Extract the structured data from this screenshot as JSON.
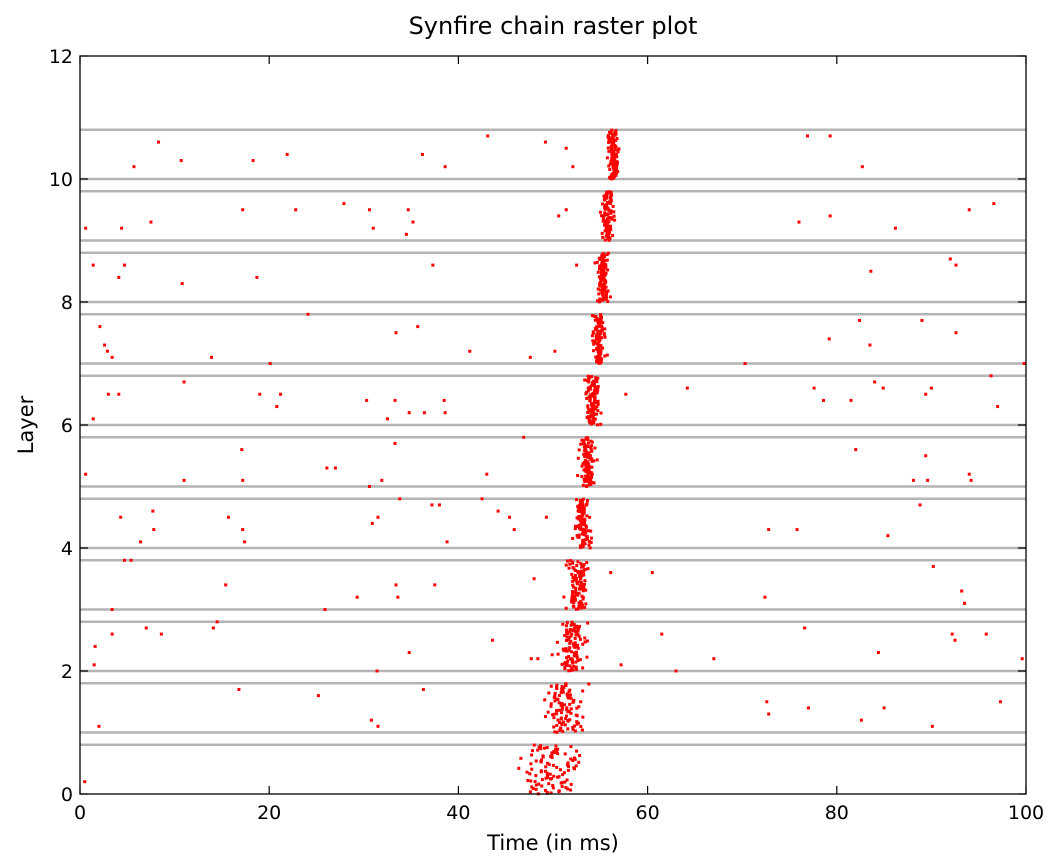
{
  "chart_data": {
    "type": "scatter",
    "title": "Synfire chain raster plot",
    "xlabel": "Time (in ms)",
    "ylabel": "Layer",
    "xlim": [
      0,
      100
    ],
    "ylim": [
      0,
      12
    ],
    "xticks": [
      0,
      20,
      40,
      60,
      80,
      100
    ],
    "yticks": [
      0,
      2,
      4,
      6,
      8,
      10,
      12
    ],
    "grid": false,
    "legend": "none",
    "marker_color": "#ff0000",
    "separator_color": "#b4b4b4",
    "layer_bands": [
      [
        0,
        0.8
      ],
      [
        1.0,
        1.8
      ],
      [
        2.0,
        2.8
      ],
      [
        3.0,
        3.8
      ],
      [
        4.0,
        4.8
      ],
      [
        5.0,
        5.8
      ],
      [
        6.0,
        6.8
      ],
      [
        7.0,
        7.8
      ],
      [
        8.0,
        8.8
      ],
      [
        9.0,
        9.8
      ],
      [
        10.0,
        10.8
      ]
    ],
    "synfire_volleys": [
      {
        "layer": 0,
        "t_center": 50.0,
        "t_spread": 1.5
      },
      {
        "layer": 1,
        "t_center": 51.2,
        "t_spread": 0.9
      },
      {
        "layer": 2,
        "t_center": 52.0,
        "t_spread": 0.6
      },
      {
        "layer": 3,
        "t_center": 52.6,
        "t_spread": 0.5
      },
      {
        "layer": 4,
        "t_center": 53.1,
        "t_spread": 0.4
      },
      {
        "layer": 5,
        "t_center": 53.6,
        "t_spread": 0.35
      },
      {
        "layer": 6,
        "t_center": 54.2,
        "t_spread": 0.35
      },
      {
        "layer": 7,
        "t_center": 54.8,
        "t_spread": 0.3
      },
      {
        "layer": 8,
        "t_center": 55.3,
        "t_spread": 0.3
      },
      {
        "layer": 9,
        "t_center": 55.8,
        "t_spread": 0.3
      },
      {
        "layer": 10,
        "t_center": 56.3,
        "t_spread": 0.3
      }
    ],
    "background_spikes": [
      [
        0.5,
        0.2
      ],
      [
        2.0,
        1.1
      ],
      [
        16.8,
        1.7
      ],
      [
        25.2,
        1.6
      ],
      [
        30.8,
        1.2
      ],
      [
        31.5,
        1.1
      ],
      [
        36.3,
        1.7
      ],
      [
        72.6,
        1.5
      ],
      [
        72.8,
        1.3
      ],
      [
        77.0,
        1.4
      ],
      [
        82.6,
        1.2
      ],
      [
        85.0,
        1.4
      ],
      [
        90.1,
        1.1
      ],
      [
        97.3,
        1.5
      ],
      [
        1.5,
        2.1
      ],
      [
        1.6,
        2.4
      ],
      [
        3.4,
        2.6
      ],
      [
        7.0,
        2.7
      ],
      [
        8.6,
        2.6
      ],
      [
        14.1,
        2.7
      ],
      [
        14.5,
        2.8
      ],
      [
        31.4,
        2.0
      ],
      [
        34.8,
        2.3
      ],
      [
        43.6,
        2.5
      ],
      [
        47.7,
        2.2
      ],
      [
        48.4,
        2.2
      ],
      [
        57.2,
        2.1
      ],
      [
        61.5,
        2.6
      ],
      [
        63.0,
        2.0
      ],
      [
        67.0,
        2.2
      ],
      [
        76.6,
        2.7
      ],
      [
        84.4,
        2.3
      ],
      [
        92.2,
        2.6
      ],
      [
        92.5,
        2.5
      ],
      [
        95.8,
        2.6
      ],
      [
        99.6,
        2.2
      ],
      [
        3.4,
        3.0
      ],
      [
        15.4,
        3.4
      ],
      [
        25.9,
        3.0
      ],
      [
        29.3,
        3.2
      ],
      [
        33.4,
        3.4
      ],
      [
        33.6,
        3.2
      ],
      [
        37.5,
        3.4
      ],
      [
        48.0,
        3.5
      ],
      [
        56.1,
        3.6
      ],
      [
        60.5,
        3.6
      ],
      [
        72.4,
        3.2
      ],
      [
        90.2,
        3.7
      ],
      [
        93.2,
        3.3
      ],
      [
        93.5,
        3.1
      ],
      [
        4.3,
        4.5
      ],
      [
        4.7,
        3.8
      ],
      [
        5.4,
        3.8
      ],
      [
        6.4,
        4.1
      ],
      [
        7.7,
        4.6
      ],
      [
        7.8,
        4.3
      ],
      [
        15.7,
        4.5
      ],
      [
        17.2,
        4.3
      ],
      [
        17.4,
        4.1
      ],
      [
        30.9,
        4.4
      ],
      [
        31.5,
        4.5
      ],
      [
        33.8,
        4.8
      ],
      [
        37.2,
        4.7
      ],
      [
        38.0,
        4.7
      ],
      [
        38.8,
        4.1
      ],
      [
        42.5,
        4.8
      ],
      [
        44.2,
        4.6
      ],
      [
        45.4,
        4.5
      ],
      [
        45.9,
        4.3
      ],
      [
        49.3,
        4.5
      ],
      [
        72.8,
        4.3
      ],
      [
        75.8,
        4.3
      ],
      [
        85.4,
        4.2
      ],
      [
        88.8,
        4.7
      ],
      [
        0.6,
        5.2
      ],
      [
        11.0,
        5.1
      ],
      [
        17.1,
        5.6
      ],
      [
        17.2,
        5.1
      ],
      [
        26.1,
        5.3
      ],
      [
        27.0,
        5.3
      ],
      [
        30.6,
        5.0
      ],
      [
        31.9,
        5.1
      ],
      [
        33.3,
        5.7
      ],
      [
        43.0,
        5.2
      ],
      [
        46.9,
        5.8
      ],
      [
        82.0,
        5.6
      ],
      [
        88.1,
        5.1
      ],
      [
        89.4,
        5.5
      ],
      [
        89.6,
        5.1
      ],
      [
        94.0,
        5.2
      ],
      [
        94.2,
        5.1
      ],
      [
        1.4,
        6.1
      ],
      [
        3.0,
        6.5
      ],
      [
        4.1,
        6.5
      ],
      [
        11.0,
        6.7
      ],
      [
        19.0,
        6.5
      ],
      [
        20.8,
        6.3
      ],
      [
        21.2,
        6.5
      ],
      [
        30.3,
        6.4
      ],
      [
        32.5,
        6.1
      ],
      [
        33.3,
        6.4
      ],
      [
        34.8,
        6.2
      ],
      [
        36.4,
        6.2
      ],
      [
        38.5,
        6.4
      ],
      [
        38.6,
        6.2
      ],
      [
        57.7,
        6.5
      ],
      [
        64.2,
        6.6
      ],
      [
        77.6,
        6.6
      ],
      [
        78.6,
        6.4
      ],
      [
        81.5,
        6.4
      ],
      [
        84.0,
        6.7
      ],
      [
        84.9,
        6.6
      ],
      [
        89.4,
        6.5
      ],
      [
        90.0,
        6.6
      ],
      [
        96.3,
        6.8
      ],
      [
        97.0,
        6.3
      ],
      [
        2.1,
        7.6
      ],
      [
        2.6,
        7.3
      ],
      [
        2.9,
        7.2
      ],
      [
        3.4,
        7.1
      ],
      [
        13.9,
        7.1
      ],
      [
        20.1,
        7.0
      ],
      [
        24.1,
        7.8
      ],
      [
        33.4,
        7.5
      ],
      [
        35.7,
        7.6
      ],
      [
        41.2,
        7.2
      ],
      [
        47.6,
        7.1
      ],
      [
        50.2,
        7.2
      ],
      [
        70.3,
        7.0
      ],
      [
        79.2,
        7.4
      ],
      [
        82.4,
        7.7
      ],
      [
        83.5,
        7.3
      ],
      [
        89.0,
        7.7
      ],
      [
        92.6,
        7.5
      ],
      [
        99.8,
        7.0
      ],
      [
        1.4,
        8.6
      ],
      [
        4.1,
        8.4
      ],
      [
        4.7,
        8.6
      ],
      [
        10.8,
        8.3
      ],
      [
        18.7,
        8.4
      ],
      [
        37.3,
        8.6
      ],
      [
        52.5,
        8.6
      ],
      [
        83.6,
        8.5
      ],
      [
        92.0,
        8.7
      ],
      [
        92.6,
        8.6
      ],
      [
        0.6,
        9.2
      ],
      [
        4.4,
        9.2
      ],
      [
        7.5,
        9.3
      ],
      [
        17.2,
        9.5
      ],
      [
        22.8,
        9.5
      ],
      [
        27.9,
        9.6
      ],
      [
        30.6,
        9.5
      ],
      [
        31.0,
        9.2
      ],
      [
        34.5,
        9.1
      ],
      [
        34.7,
        9.5
      ],
      [
        35.2,
        9.3
      ],
      [
        50.6,
        9.4
      ],
      [
        51.4,
        9.5
      ],
      [
        76.0,
        9.3
      ],
      [
        79.3,
        9.4
      ],
      [
        86.2,
        9.2
      ],
      [
        94.0,
        9.5
      ],
      [
        96.6,
        9.6
      ],
      [
        5.7,
        10.2
      ],
      [
        8.3,
        10.6
      ],
      [
        10.7,
        10.3
      ],
      [
        18.3,
        10.3
      ],
      [
        21.9,
        10.4
      ],
      [
        36.2,
        10.4
      ],
      [
        38.6,
        10.2
      ],
      [
        43.1,
        10.7
      ],
      [
        49.2,
        10.6
      ],
      [
        51.4,
        10.5
      ],
      [
        52.1,
        10.2
      ],
      [
        76.9,
        10.7
      ],
      [
        79.3,
        10.7
      ],
      [
        82.7,
        10.2
      ]
    ]
  }
}
